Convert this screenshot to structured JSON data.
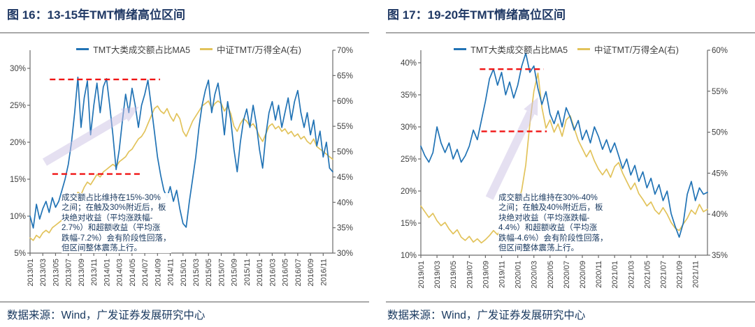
{
  "source_note": "数据来源：Wind，广发证券发展研究中心",
  "colors": {
    "blue": "#2173B5",
    "yellow": "#E2C35B",
    "dashed": "#F01414",
    "arrow": "#CDC2E5",
    "title": "#1F3864",
    "annotation_text": "#17375E",
    "axis": "#6b6b6b",
    "tick_text": "#404040",
    "rule": "#A9A9A9"
  },
  "chart_data": [
    {
      "type": "line",
      "title": "图 16：13-15年TMT情绪高位区间",
      "months_total": 47.5,
      "x_label_months": [
        0,
        2,
        4,
        6,
        8,
        10,
        12,
        14,
        16,
        18,
        20,
        22,
        24,
        26,
        28,
        30,
        32,
        34,
        36,
        38,
        40,
        42,
        44,
        46
      ],
      "x_labels": [
        "2013/01",
        "2013/03",
        "2013/05",
        "2013/07",
        "2013/09",
        "2013/11",
        "2014/01",
        "2014/03",
        "2014/05",
        "2014/07",
        "2014/09",
        "2014/11",
        "2015/01",
        "2015/03",
        "2015/05",
        "2015/07",
        "2015/09",
        "2015/11",
        "2016/01",
        "2016/03",
        "2016/05",
        "2016/07",
        "2016/09",
        "2016/11"
      ],
      "left_axis": {
        "min": 5,
        "max": 30,
        "ticks": [
          5,
          10,
          15,
          20,
          25,
          30
        ],
        "tick_labels": [
          "5%",
          "10%",
          "15%",
          "20%",
          "25%",
          "30%"
        ]
      },
      "right_axis": {
        "min": 30,
        "max": 70,
        "ticks": [
          30,
          35,
          40,
          45,
          50,
          55,
          60,
          65,
          70
        ],
        "tick_labels": [
          "30%",
          "35%",
          "40%",
          "45%",
          "50%",
          "55%",
          "60%",
          "65%",
          "70%"
        ]
      },
      "series": [
        {
          "name": "TMT大类成交额占比MA5",
          "axis": "left",
          "color": "#2173B5",
          "values": [
            10,
            8.4,
            11.6,
            9.6,
            11,
            12,
            10.5,
            12.5,
            11.2,
            12,
            13.5,
            15,
            17,
            20,
            24,
            28.8,
            22,
            26,
            28.3,
            21,
            25,
            28,
            24,
            27.5,
            28.6,
            25,
            21,
            16.3,
            19,
            23,
            26.5,
            24,
            27.3,
            25,
            22,
            25,
            26.5,
            28.4,
            25,
            21.5,
            18,
            15.5,
            13.5,
            12.5,
            14,
            12,
            13.5,
            11,
            9,
            8.5,
            12,
            15,
            18,
            22,
            25,
            27,
            28.4,
            24,
            26.5,
            28,
            25,
            21,
            25.5,
            23,
            19,
            16,
            20,
            23,
            24.5,
            22,
            25,
            22.5,
            19,
            16.5,
            21,
            24,
            25.5,
            23,
            25,
            22,
            24,
            26,
            23,
            25.5,
            27,
            24,
            22,
            24,
            21,
            23,
            19.5,
            21.5,
            18,
            20,
            16.5,
            16
          ]
        },
        {
          "name": "中证TMT/万得全A(右)",
          "axis": "right",
          "color": "#E2C35B",
          "values": [
            33,
            32.5,
            33.5,
            33,
            34,
            34.5,
            34,
            35,
            35.5,
            36,
            36.5,
            37.5,
            38,
            39,
            40.5,
            42,
            41.5,
            43,
            44,
            43.5,
            44.5,
            45.5,
            45,
            46,
            46.5,
            47,
            47.5,
            47,
            48,
            48.5,
            49,
            50,
            50.5,
            51.5,
            52.5,
            53,
            54,
            55.5,
            57,
            58.5,
            59,
            58,
            57.5,
            58.5,
            57,
            56,
            57.5,
            56.5,
            54,
            53,
            54.5,
            56,
            57,
            58,
            59,
            59.5,
            60,
            58.5,
            59.5,
            60,
            59.5,
            58,
            59,
            57.5,
            55,
            54,
            55.5,
            56.5,
            56,
            55,
            55.5,
            54.5,
            53,
            52,
            53.5,
            55,
            55.5,
            54.5,
            55,
            54,
            54.5,
            53.5,
            54,
            53,
            53.5,
            52.5,
            53,
            52,
            51.5,
            52.5,
            51,
            50.5,
            50,
            49.5,
            49,
            48.5
          ]
        }
      ],
      "dashed_lines": [
        {
          "value": 28.5,
          "from_month": 3.1,
          "to_month": 20.4
        },
        {
          "value": 15.7,
          "from_month": 3.5,
          "to_month": 17.6
        }
      ],
      "arrow": {
        "from_month": 2.3,
        "from_value": 17.3,
        "to_month": 17.1,
        "to_value": 24.8
      },
      "annotation": "成交额占比维持在15%-30%\n之间；在触及30%附近后，板\n块绝对收益（平均涨跌幅-\n2.7%）和超额收益（平均涨\n跌幅-7.2%）会有阶段性回落，\n但区间整体震荡上行。"
    },
    {
      "type": "line",
      "title": "图 17：19-20年TMT情绪高位区间",
      "months_total": 35.5,
      "x_label_months": [
        0,
        2,
        4,
        6,
        8,
        10,
        12,
        14,
        16,
        18,
        20,
        22,
        24,
        26,
        28,
        30,
        32,
        34
      ],
      "x_labels": [
        "2019/01",
        "2019/03",
        "2019/05",
        "2019/07",
        "2019/09",
        "2019/11",
        "2020/01",
        "2020/03",
        "2020/05",
        "2020/07",
        "2020/09",
        "2020/11",
        "2021/01",
        "2021/03",
        "2021/05",
        "2021/07",
        "2021/09",
        "2021/11"
      ],
      "left_axis": {
        "min": 10,
        "max": 40,
        "ticks": [
          10,
          15,
          20,
          25,
          30,
          35,
          40
        ],
        "tick_labels": [
          "10%",
          "15%",
          "20%",
          "25%",
          "30%",
          "35%",
          "40%"
        ]
      },
      "right_axis": {
        "min": 35,
        "max": 60,
        "ticks": [
          35,
          40,
          45,
          50,
          55,
          60
        ],
        "tick_labels": [
          "35%",
          "40%",
          "45%",
          "50%",
          "55%",
          "60%"
        ]
      },
      "series": [
        {
          "name": "TMT大类成交额占比MA5",
          "axis": "left",
          "color": "#2173B5",
          "values": [
            27,
            25.5,
            24.5,
            26,
            30,
            27.5,
            26,
            27.5,
            25,
            26.5,
            24.5,
            25.5,
            27,
            29.5,
            28,
            31,
            34,
            37.5,
            39,
            36.5,
            38.5,
            35,
            37,
            34.5,
            36.5,
            39.5,
            41.5,
            38.5,
            39.5,
            36,
            33.5,
            35.5,
            32,
            30.5,
            32.5,
            30,
            33,
            31.5,
            29.5,
            31,
            28,
            29.5,
            27.5,
            30,
            28.5,
            26.5,
            28,
            26,
            27.5,
            25.5,
            23.5,
            25,
            22.5,
            24,
            21.5,
            23,
            20.5,
            22,
            19.5,
            21,
            18.5,
            20,
            16.5,
            14.5,
            12.8,
            15,
            19.5,
            21.5,
            18.5,
            20.5,
            19.5,
            19.8
          ]
        },
        {
          "name": "中证TMT/万得全A(右)",
          "axis": "right",
          "color": "#E2C35B",
          "values": [
            41,
            40.3,
            39.6,
            40.1,
            39.2,
            38.6,
            39,
            38.2,
            37.6,
            38.1,
            37.2,
            36.8,
            37.3,
            36.6,
            37,
            36.5,
            36.9,
            37.4,
            38,
            37.5,
            38.3,
            39,
            39.6,
            40.2,
            41,
            43,
            46,
            51,
            55,
            57.2,
            53,
            50.5,
            51.5,
            50,
            51,
            49.5,
            51.5,
            52,
            50.5,
            49,
            48,
            47,
            47.8,
            46.5,
            45.5,
            44.8,
            45.5,
            44.5,
            45.8,
            46.3,
            45,
            44,
            43,
            43.8,
            42.5,
            41.8,
            41,
            41.5,
            40.5,
            40,
            40.8,
            40,
            39,
            38.3,
            38,
            38.8,
            39.5,
            40.5,
            40,
            41.2,
            40.3,
            40.6
          ]
        }
      ],
      "dashed_lines": [
        {
          "value": 39,
          "from_month": 7.3,
          "to_month": 15.2
        },
        {
          "value": 29.3,
          "from_month": 7.5,
          "to_month": 15.6
        }
      ],
      "arrow": {
        "from_month": 8.5,
        "from_value": 18.9,
        "to_month": 14.5,
        "to_value": 34.6
      },
      "annotation": "成交额占比维持在30%-40%\n之间；在触及40%附近后，板\n块绝对收益（平均涨跌幅-\n4.4%）和超额收益（平均涨\n跌幅-4.6%）会有阶段性回落，\n但区间整体震荡上行。"
    }
  ]
}
